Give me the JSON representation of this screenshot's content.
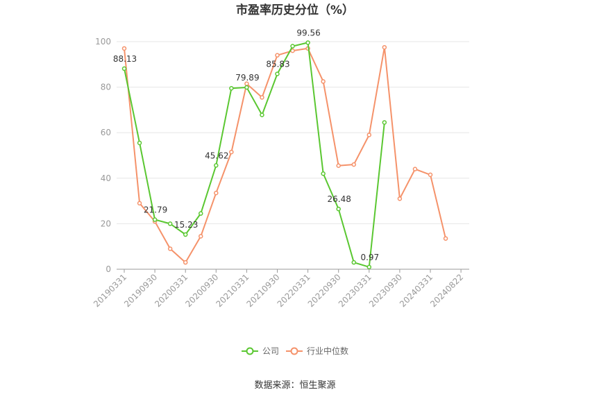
{
  "chart_data": {
    "type": "line",
    "title": "市盈率历史分位（%）",
    "xlabel": "",
    "ylabel": "",
    "ylim": [
      0,
      100
    ],
    "yticks": [
      0,
      20,
      40,
      60,
      80,
      100
    ],
    "x_tick_labels": [
      "20190331",
      "20190930",
      "20200331",
      "20200930",
      "20210331",
      "20210930",
      "20220331",
      "20220930",
      "20230331",
      "20230930",
      "20240331",
      "20240822"
    ],
    "x": [
      "20190331",
      "20190630",
      "20190930",
      "20191231",
      "20200331",
      "20200630",
      "20200930",
      "20201231",
      "20210331",
      "20210630",
      "20210930",
      "20211231",
      "20220331",
      "20220630",
      "20220930",
      "20221231",
      "20230331",
      "20230630",
      "20230930",
      "20231231",
      "20240331",
      "20240630",
      "20240822"
    ],
    "series": [
      {
        "name": "公司",
        "color": "#5ac731",
        "values": [
          88.13,
          55.5,
          21.79,
          20.0,
          15.23,
          24.5,
          45.62,
          79.5,
          79.89,
          67.8,
          85.83,
          98.0,
          99.56,
          42.0,
          26.48,
          3.0,
          0.97,
          64.5,
          null,
          null,
          null,
          null,
          null
        ],
        "labels": [
          {
            "index": 0,
            "text": "88.13"
          },
          {
            "index": 2,
            "text": "21.79"
          },
          {
            "index": 4,
            "text": "15.23"
          },
          {
            "index": 6,
            "text": "45.62"
          },
          {
            "index": 8,
            "text": "79.89"
          },
          {
            "index": 10,
            "text": "85.83"
          },
          {
            "index": 12,
            "text": "99.56"
          },
          {
            "index": 14,
            "text": "26.48"
          },
          {
            "index": 16,
            "text": "0.97"
          }
        ]
      },
      {
        "name": "行业中位数",
        "color": "#f5926a",
        "values": [
          97.0,
          29.0,
          21.0,
          9.0,
          3.0,
          14.5,
          33.5,
          51.5,
          81.5,
          75.5,
          94.0,
          96.0,
          97.0,
          82.5,
          45.5,
          46.0,
          59.0,
          97.5,
          31.0,
          44.0,
          41.5,
          13.5,
          null
        ],
        "labels": []
      }
    ],
    "grid": true,
    "legend_position": "bottom"
  },
  "source_text": "数据来源：恒生聚源"
}
